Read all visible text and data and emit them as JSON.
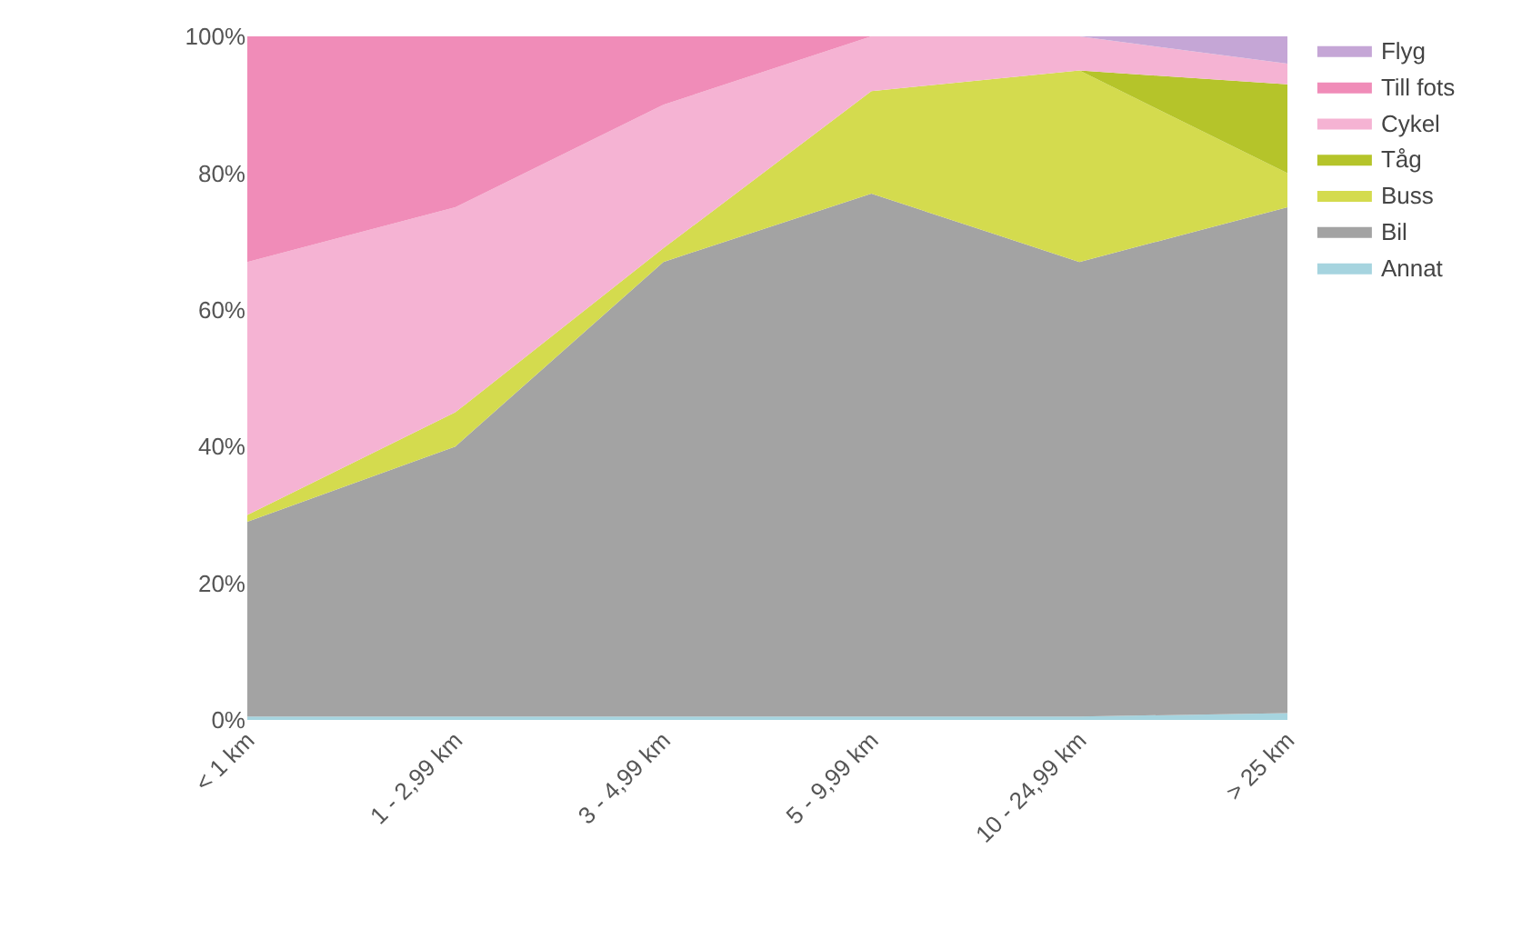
{
  "chart_data": {
    "type": "area",
    "stacked": true,
    "categories": [
      "< 1 km",
      "1 - 2,99 km",
      "3 - 4,99 km",
      "5 - 9,99 km",
      "10 - 24,99 km",
      "> 25 km"
    ],
    "series": [
      {
        "name": "Annat",
        "color": "#a6d4df",
        "values": [
          0.5,
          0.5,
          0.5,
          0.5,
          0.5,
          1
        ]
      },
      {
        "name": "Bil",
        "color": "#a3a3a3",
        "values": [
          28.5,
          39.5,
          66.5,
          76.5,
          66.5,
          74
        ]
      },
      {
        "name": "Buss",
        "color": "#d4db4e",
        "values": [
          1,
          5,
          2,
          15,
          28,
          5
        ]
      },
      {
        "name": "Tåg",
        "color": "#b5c42a",
        "values": [
          0,
          0,
          0,
          0,
          0,
          13
        ]
      },
      {
        "name": "Cykel",
        "color": "#f5b3d3",
        "values": [
          37,
          30,
          21,
          8,
          5,
          3
        ]
      },
      {
        "name": "Till fots",
        "color": "#f08cb8",
        "values": [
          33,
          25,
          10,
          0,
          0,
          0
        ]
      },
      {
        "name": "Flyg",
        "color": "#c5a6d6",
        "values": [
          0,
          0,
          0,
          0,
          0,
          4
        ]
      }
    ],
    "ylim": [
      0,
      100
    ],
    "yticks": [
      {
        "value": 0,
        "label": "0%"
      },
      {
        "value": 20,
        "label": "20%"
      },
      {
        "value": 40,
        "label": "40%"
      },
      {
        "value": 60,
        "label": "60%"
      },
      {
        "value": 80,
        "label": "80%"
      },
      {
        "value": 100,
        "label": "100%"
      }
    ],
    "legend": "top right"
  }
}
